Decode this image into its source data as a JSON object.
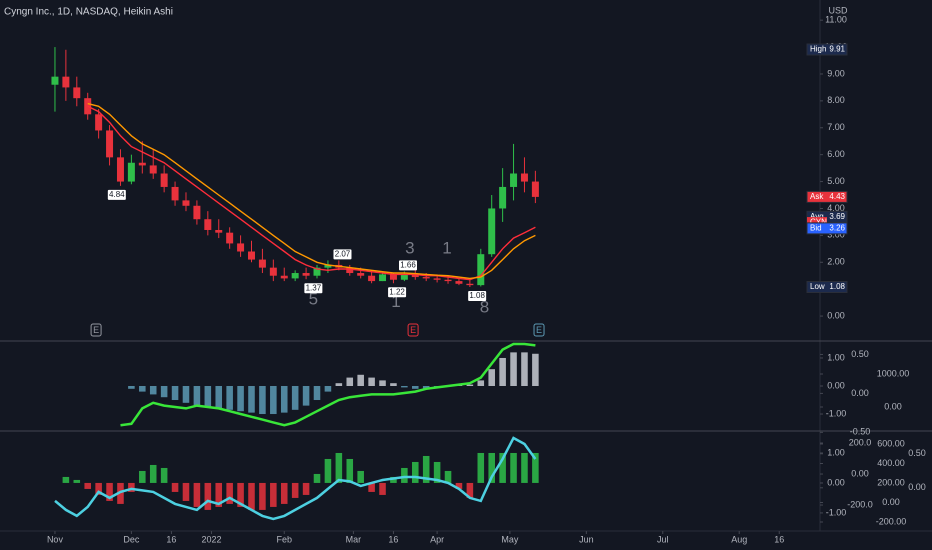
{
  "chart_data": [
    {
      "type": "candlestick",
      "title": "Cyngn Inc., 1D, NASDAQ, Heikin Ashi",
      "currency": "USD",
      "x": [
        0,
        3,
        6,
        9,
        12,
        15,
        18,
        21,
        24,
        27,
        30,
        33,
        36,
        39,
        42,
        45,
        48,
        51,
        54,
        57,
        60,
        63,
        66,
        69,
        72,
        75,
        78,
        81,
        84,
        87,
        90,
        93,
        96,
        99,
        102,
        105,
        108,
        111,
        114,
        117,
        120,
        123,
        126,
        129,
        132
      ],
      "open": [
        8.6,
        8.9,
        8.5,
        8.1,
        7.5,
        6.9,
        5.9,
        5.0,
        5.7,
        5.6,
        5.3,
        4.8,
        4.3,
        4.1,
        3.6,
        3.2,
        3.1,
        2.7,
        2.4,
        2.1,
        1.8,
        1.5,
        1.4,
        1.6,
        1.5,
        1.8,
        1.9,
        1.8,
        1.6,
        1.5,
        1.3,
        1.55,
        1.35,
        1.55,
        1.45,
        1.4,
        1.35,
        1.3,
        1.2,
        1.15,
        2.3,
        4.0,
        4.8,
        5.3,
        5.0
      ],
      "high": [
        10.0,
        9.9,
        8.9,
        8.3,
        7.7,
        7.1,
        6.2,
        6.0,
        6.5,
        6.2,
        5.6,
        5.0,
        4.6,
        4.3,
        3.9,
        3.6,
        3.3,
        3.0,
        2.8,
        2.5,
        2.1,
        1.8,
        1.7,
        1.8,
        1.9,
        2.07,
        2.07,
        1.9,
        1.8,
        1.7,
        1.66,
        1.6,
        1.66,
        1.7,
        1.6,
        1.55,
        1.5,
        1.4,
        1.35,
        2.5,
        4.5,
        5.5,
        6.4,
        5.9,
        5.4
      ],
      "low": [
        7.6,
        8.0,
        7.8,
        7.3,
        6.6,
        5.6,
        4.84,
        4.9,
        5.3,
        5.1,
        4.6,
        4.1,
        3.9,
        3.4,
        3.0,
        2.9,
        2.5,
        2.2,
        2.0,
        1.6,
        1.3,
        1.3,
        1.3,
        1.37,
        1.4,
        1.6,
        1.7,
        1.5,
        1.4,
        1.22,
        1.3,
        1.22,
        1.3,
        1.35,
        1.3,
        1.25,
        1.2,
        1.15,
        1.08,
        1.1,
        2.2,
        3.5,
        4.3,
        4.6,
        4.2
      ],
      "close": [
        8.9,
        8.5,
        8.1,
        7.5,
        6.9,
        5.9,
        5.0,
        5.7,
        5.6,
        5.3,
        4.8,
        4.3,
        4.1,
        3.6,
        3.2,
        3.1,
        2.7,
        2.4,
        2.1,
        1.8,
        1.5,
        1.4,
        1.6,
        1.5,
        1.8,
        1.9,
        1.8,
        1.6,
        1.5,
        1.3,
        1.55,
        1.35,
        1.55,
        1.45,
        1.4,
        1.35,
        1.3,
        1.2,
        1.15,
        2.3,
        4.0,
        4.8,
        5.3,
        5.0,
        4.43
      ],
      "up_color": "#2fbf4a",
      "down_color": "#e8323c",
      "series": [
        {
          "type": "line",
          "color": "#ff2d3a",
          "values": [
            null,
            null,
            null,
            7.8,
            7.6,
            7.2,
            6.7,
            6.3,
            6.1,
            5.9,
            5.7,
            5.4,
            5.1,
            4.8,
            4.5,
            4.2,
            3.9,
            3.6,
            3.3,
            3.0,
            2.7,
            2.4,
            2.1,
            1.9,
            1.75,
            1.7,
            1.75,
            1.75,
            1.7,
            1.65,
            1.6,
            1.55,
            1.55,
            1.55,
            1.5,
            1.5,
            1.45,
            1.4,
            1.35,
            1.5,
            2.0,
            2.5,
            2.9,
            3.1,
            3.3
          ]
        },
        {
          "type": "line",
          "color": "#ff9800",
          "values": [
            null,
            null,
            null,
            7.9,
            7.8,
            7.5,
            7.1,
            6.7,
            6.4,
            6.2,
            6.0,
            5.7,
            5.4,
            5.1,
            4.8,
            4.5,
            4.2,
            3.9,
            3.6,
            3.3,
            3.0,
            2.7,
            2.4,
            2.2,
            2.0,
            1.9,
            1.85,
            1.8,
            1.75,
            1.7,
            1.65,
            1.6,
            1.6,
            1.58,
            1.55,
            1.52,
            1.5,
            1.45,
            1.4,
            1.45,
            1.7,
            2.1,
            2.5,
            2.8,
            3.0
          ]
        }
      ],
      "xlim": [
        -15.1,
        210.2
      ],
      "xticks": [
        {
          "value": 0,
          "label": "Nov"
        },
        {
          "value": 21,
          "label": "Dec"
        },
        {
          "value": 32,
          "label": "16"
        },
        {
          "value": 43,
          "label": "2022"
        },
        {
          "value": 63,
          "label": "Feb"
        },
        {
          "value": 82,
          "label": "Mar"
        },
        {
          "value": 93,
          "label": "16"
        },
        {
          "value": 105,
          "label": "Apr"
        },
        {
          "value": 125,
          "label": "May"
        },
        {
          "value": 146,
          "label": "Jun"
        },
        {
          "value": 167,
          "label": "Jul"
        },
        {
          "value": 188,
          "label": "Aug"
        },
        {
          "value": 199,
          "label": "16"
        }
      ],
      "ylim": [
        -0.89,
        11.75
      ],
      "yticks": [
        {
          "value": 0,
          "label": "0.00"
        },
        {
          "value": 2,
          "label": "2.00"
        },
        {
          "value": 3,
          "label": "3.00"
        },
        {
          "value": 4,
          "label": "4.00"
        },
        {
          "value": 5,
          "label": "5.00"
        },
        {
          "value": 6,
          "label": "6.00"
        },
        {
          "value": 7,
          "label": "7.00"
        },
        {
          "value": 8,
          "label": "8.00"
        },
        {
          "value": 9,
          "label": "9.00"
        },
        {
          "value": 10,
          "label": "10.00"
        },
        {
          "value": 11,
          "label": "11.00"
        }
      ],
      "price_markers": [
        {
          "x": 17,
          "value": 4.84,
          "position": "below"
        },
        {
          "x": 71,
          "value": 1.37,
          "position": "below"
        },
        {
          "x": 79,
          "value": 2.07,
          "position": "above"
        },
        {
          "x": 97,
          "value": 1.66,
          "position": "above"
        },
        {
          "x": 94,
          "value": 1.22,
          "position": "below"
        },
        {
          "x": 116,
          "value": 1.08,
          "position": "below"
        }
      ],
      "count_labels": [
        {
          "text": "5",
          "x": 71,
          "y": 0.6
        },
        {
          "text": "3",
          "x": 97.5,
          "y": 2.5
        },
        {
          "text": "1",
          "x": 93.7,
          "y": 0.5
        },
        {
          "text": "1",
          "x": 107.7,
          "y": 2.5
        },
        {
          "text": "8",
          "x": 118,
          "y": 0.3
        }
      ],
      "events": [
        {
          "x": 11.3,
          "label": "E",
          "color": "#9598a1"
        },
        {
          "x": 98.4,
          "label": "E",
          "color": "#e8323c"
        },
        {
          "x": 133,
          "label": "E",
          "color": "#5d9bb5"
        }
      ],
      "price_labels": [
        {
          "name": "High",
          "value": 9.91,
          "color": "#1c2a4d"
        },
        {
          "name": "Ask",
          "value": 4.43,
          "color": "#e8323c"
        },
        {
          "name": "Avg",
          "value": 3.69,
          "color": "#1c2a4d"
        },
        {
          "name": "CYN",
          "color": "#e8323c"
        },
        {
          "name": "Bid",
          "value": 3.26,
          "color": "#2962ff"
        },
        {
          "name": "Low",
          "value": 1.08,
          "color": "#1c2a4d"
        }
      ]
    },
    {
      "type": "bar",
      "series": [
        {
          "type": "bar",
          "positive_color": "#c9ccd4",
          "negative_color": "#5d9bb5",
          "values": [
            0,
            0,
            0,
            0,
            0,
            0,
            0,
            -0.1,
            -0.2,
            -0.3,
            -0.4,
            -0.5,
            -0.6,
            -0.7,
            -0.75,
            -0.8,
            -0.85,
            -0.9,
            -0.95,
            -1.0,
            -1.0,
            -0.95,
            -0.85,
            -0.7,
            -0.5,
            -0.2,
            0.1,
            0.3,
            0.4,
            0.3,
            0.2,
            0.1,
            -0.05,
            -0.1,
            -0.1,
            -0.05,
            0,
            0.05,
            0.05,
            0.2,
            0.6,
            1.0,
            1.2,
            1.2,
            1.15
          ]
        },
        {
          "type": "line",
          "color": "#39e639",
          "values": [
            null,
            null,
            null,
            null,
            null,
            null,
            -1.4,
            -1.35,
            -0.8,
            -0.6,
            -0.7,
            -0.75,
            -0.8,
            -0.7,
            -0.75,
            -0.8,
            -0.9,
            -1.0,
            -1.1,
            -1.2,
            -1.3,
            -1.4,
            -1.3,
            -1.1,
            -0.9,
            -0.7,
            -0.5,
            -0.4,
            -0.35,
            -0.3,
            -0.3,
            -0.3,
            -0.25,
            -0.2,
            -0.1,
            -0.05,
            0,
            0.05,
            0.1,
            0.3,
            0.8,
            1.3,
            1.5,
            1.5,
            1.45
          ]
        }
      ],
      "ylim": [
        -1.57,
        1.57
      ],
      "yticks": [
        {
          "value": 1,
          "label": "1.00"
        },
        {
          "value": 0,
          "label": "0.00"
        },
        {
          "value": -1,
          "label": "-1.00"
        }
      ],
      "y2lim": [
        -0.47,
        0.66
      ],
      "y2ticks": [
        {
          "value": 0.5,
          "label": "0.50"
        },
        {
          "value": 0,
          "label": "0.00"
        },
        {
          "value": -0.5,
          "label": "-0.50"
        }
      ],
      "y3lim": [
        -697,
        1970
      ],
      "y3ticks": [
        {
          "value": 1000,
          "label": "1000.00"
        },
        {
          "value": 0,
          "label": "0.00"
        }
      ]
    },
    {
      "type": "bar",
      "series": [
        {
          "type": "bar",
          "positive_color": "#2fbf4a",
          "negative_color": "#e8323c",
          "values": [
            0,
            0.2,
            0.1,
            -0.2,
            -0.4,
            -0.6,
            -0.7,
            -0.3,
            0.4,
            0.6,
            0.5,
            -0.3,
            -0.6,
            -0.8,
            -0.9,
            -0.8,
            -0.7,
            -0.8,
            -0.9,
            -0.9,
            -0.8,
            -0.7,
            -0.5,
            -0.4,
            0.3,
            0.8,
            1.0,
            0.8,
            0.4,
            -0.3,
            -0.4,
            0.2,
            0.5,
            0.7,
            0.9,
            0.7,
            0.4,
            -0.2,
            -0.5,
            1.0,
            1.0,
            1.0,
            1.0,
            1.0,
            1.0
          ]
        },
        {
          "type": "line",
          "color": "#4dd0e1",
          "values": [
            -0.6,
            -0.9,
            -1.1,
            -0.8,
            -0.3,
            -0.5,
            -0.3,
            -0.2,
            -0.25,
            -0.3,
            -0.5,
            -0.7,
            -0.8,
            -0.9,
            -0.6,
            -0.7,
            -0.5,
            -0.7,
            -0.9,
            -1.1,
            -1.2,
            -1.1,
            -0.9,
            -0.7,
            -0.5,
            -0.2,
            0.1,
            0.05,
            -0.1,
            0.0,
            0.1,
            0.15,
            0.2,
            0.2,
            0.15,
            0.1,
            0.0,
            -0.2,
            -0.5,
            -0.6,
            0.2,
            0.8,
            1.5,
            1.3,
            0.8
          ]
        }
      ],
      "ylim": [
        -1.57,
        1.7
      ],
      "yticks": [
        {
          "value": 1,
          "label": "1.00"
        },
        {
          "value": 0,
          "label": "0.00"
        },
        {
          "value": -1,
          "label": "-1.00"
        }
      ],
      "y2lim": [
        -361,
        271
      ],
      "y2ticks": [
        {
          "value": 200,
          "label": "200.0"
        },
        {
          "value": 0,
          "label": "0.00"
        },
        {
          "value": -200,
          "label": "-200.0"
        }
      ],
      "y3lim": [
        -282,
        723
      ],
      "y3ticks": [
        {
          "value": 600,
          "label": "600.00"
        },
        {
          "value": 400,
          "label": "400.00"
        },
        {
          "value": 200,
          "label": "200.00"
        },
        {
          "value": 0,
          "label": "0.00"
        },
        {
          "value": -200,
          "label": "-200.00"
        }
      ],
      "y4lim": [
        -0.62,
        0.82
      ],
      "y4ticks": [
        {
          "value": 0.5,
          "label": "0.50"
        },
        {
          "value": 0,
          "label": "0.00"
        }
      ]
    }
  ]
}
